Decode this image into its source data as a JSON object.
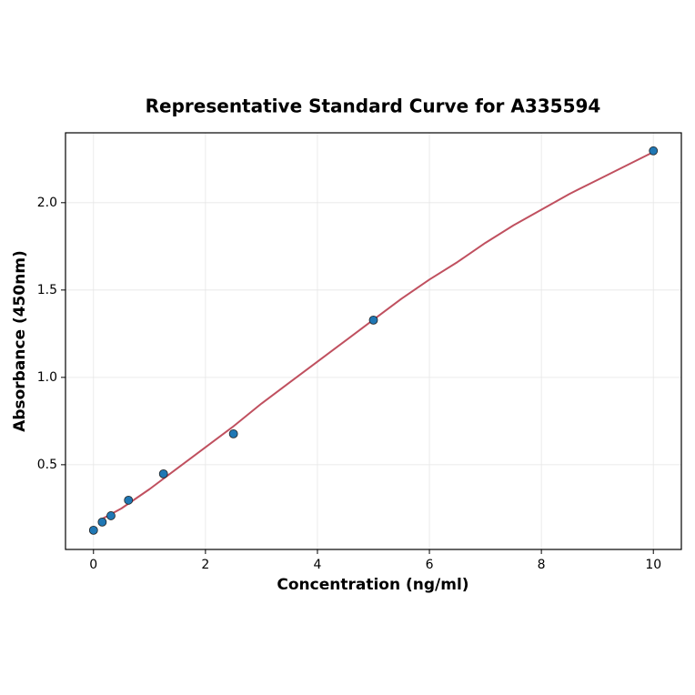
{
  "chart_data": {
    "type": "scatter",
    "title": "Representative Standard Curve for A335594",
    "xlabel": "Concentration (ng/ml)",
    "ylabel": "Absorbance (450nm)",
    "xlim": [
      -0.5,
      10.5
    ],
    "ylim": [
      0.015,
      2.4
    ],
    "xticks": [
      0,
      2,
      4,
      6,
      8,
      10
    ],
    "yticks": [
      0.5,
      {
        "value": 1.0,
        "label": "1.0"
      },
      1.5,
      {
        "value": 2.0,
        "label": "2.0"
      }
    ],
    "grid": true,
    "series": [
      {
        "type": "line",
        "color": "#c0505f",
        "x": [
          0.156,
          0.5,
          1,
          1.5,
          2,
          2.5,
          3,
          3.5,
          4,
          4.5,
          5,
          5.5,
          6,
          6.5,
          7,
          7.5,
          8,
          8.5,
          9,
          9.5,
          10
        ],
        "values": [
          0.19,
          0.25,
          0.36,
          0.48,
          0.6,
          0.72,
          0.85,
          0.97,
          1.09,
          1.21,
          1.33,
          1.45,
          1.56,
          1.66,
          1.77,
          1.87,
          1.96,
          2.05,
          2.13,
          2.21,
          2.29
        ]
      },
      {
        "type": "scatter",
        "color": "#1f77b4",
        "x": [
          0,
          0.156,
          0.312,
          0.625,
          1.25,
          2.5,
          5,
          10
        ],
        "values": [
          0.125,
          0.172,
          0.208,
          0.297,
          0.448,
          0.677,
          1.328,
          2.297
        ]
      }
    ]
  }
}
